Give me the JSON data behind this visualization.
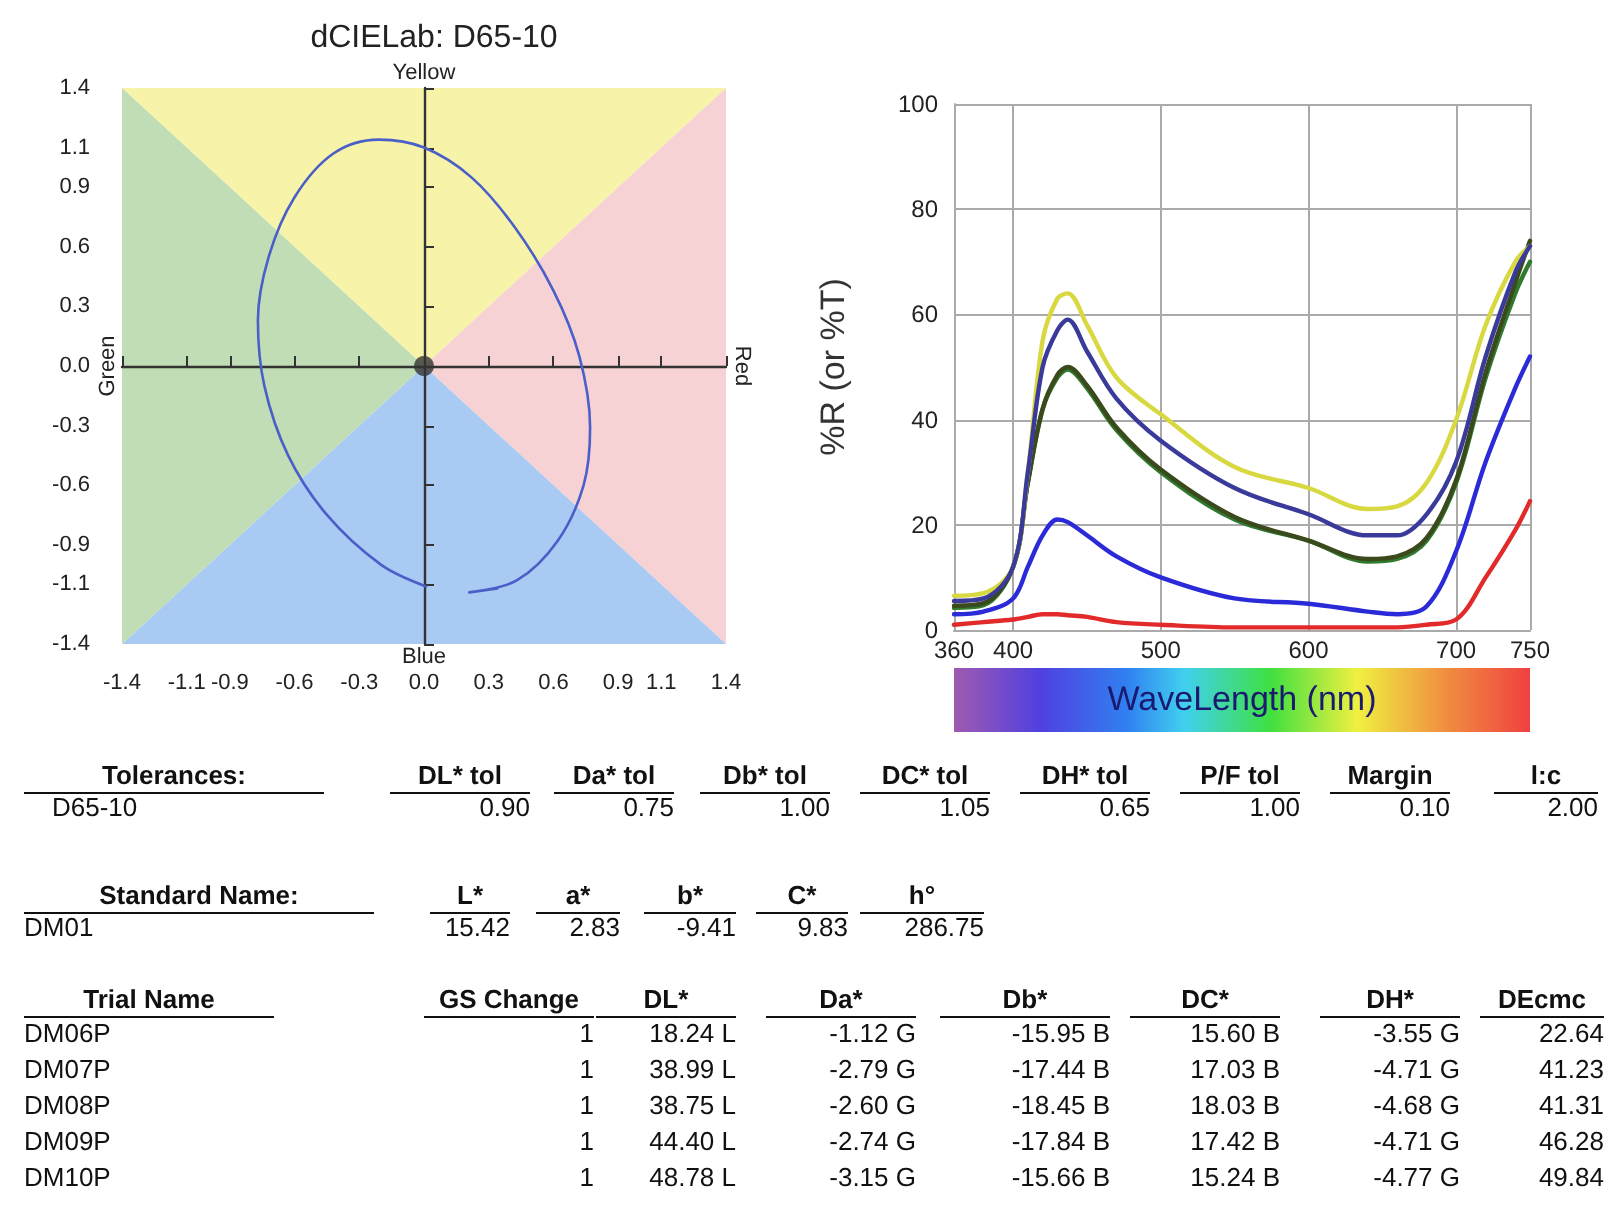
{
  "chart_data": [
    {
      "type": "line",
      "title": "dCIELab: D65-10",
      "x": [
        0.01,
        -0.2,
        -0.45,
        -0.63,
        -0.74,
        -0.77,
        -0.72,
        -0.6,
        -0.42,
        -0.21,
        0.0,
        0.22,
        0.42,
        0.6,
        0.72,
        0.77,
        0.74,
        0.62,
        0.43,
        0.21,
        0.34
      ],
      "series": [
        {
          "type": "area",
          "color": "#f7f3a8",
          "x": [
            -1.4,
            0,
            1.4
          ],
          "values": [
            null,
            null,
            null
          ],
          "lower": [
            1.4,
            0,
            1.4
          ],
          "upper": [
            1.4,
            1.4,
            1.4
          ]
        },
        {
          "type": "area",
          "color": "#f6d2d5",
          "x": [
            0,
            1.4
          ],
          "values": [
            null,
            null
          ],
          "lower": [
            0,
            -1.4
          ],
          "upper": [
            0,
            1.4
          ]
        },
        {
          "type": "area",
          "color": "#a9caf3",
          "x": [
            -1.4,
            0,
            1.4
          ],
          "values": [
            null,
            null,
            null
          ],
          "lower": [
            -1.4,
            -1.4,
            -1.4
          ],
          "upper": [
            -1.4,
            0,
            -1.4
          ]
        },
        {
          "type": "area",
          "color": "#c0ddb6",
          "x": [
            -1.4,
            0
          ],
          "values": [
            null,
            null
          ],
          "lower": [
            -1.4,
            0
          ],
          "upper": [
            1.4,
            0
          ]
        },
        {
          "color": "#4a5fc8",
          "values": [
            -1.11,
            -1.0,
            -0.75,
            -0.45,
            -0.1,
            0.23,
            0.55,
            0.85,
            1.07,
            1.14,
            1.1,
            0.95,
            0.7,
            0.38,
            0.05,
            -0.31,
            -0.6,
            -0.88,
            -1.08,
            -1.14,
            -1.12
          ]
        },
        {
          "type": "scatter",
          "color": "#333333",
          "x": [
            0
          ],
          "values": [
            0
          ]
        }
      ],
      "xlim": [
        -1.4,
        1.4
      ],
      "ylim": [
        -1.4,
        1.4
      ],
      "xticks": [
        {
          "value": -1.4,
          "label": "-1.4"
        },
        {
          "value": -1.1,
          "label": "-1.1"
        },
        {
          "value": -0.9,
          "label": "-0.9"
        },
        {
          "value": -0.6,
          "label": "-0.6"
        },
        {
          "value": -0.3,
          "label": "-0.3"
        },
        {
          "value": 0,
          "label": "0.0"
        },
        {
          "value": 0.3,
          "label": "0.3"
        },
        {
          "value": 0.6,
          "label": "0.6"
        },
        {
          "value": 0.9,
          "label": "0.9"
        },
        {
          "value": 1.1,
          "label": "1.1"
        },
        {
          "value": 1.4,
          "label": "1.4"
        }
      ],
      "yticks": [
        {
          "value": -1.4,
          "label": "-1.4"
        },
        {
          "value": -1.1,
          "label": "-1.1"
        },
        {
          "value": -0.9,
          "label": "-0.9"
        },
        {
          "value": -0.6,
          "label": "-0.6"
        },
        {
          "value": -0.3,
          "label": "-0.3"
        },
        {
          "value": 0,
          "label": "0.0"
        },
        {
          "value": 0.3,
          "label": "0.3"
        },
        {
          "value": 0.6,
          "label": "0.6"
        },
        {
          "value": 0.9,
          "label": "0.9"
        },
        {
          "value": 1.1,
          "label": "1.1"
        },
        {
          "value": 1.4,
          "label": "1.4"
        }
      ],
      "annotations": [
        "Yellow",
        "Blue",
        "Green",
        "Red"
      ]
    },
    {
      "type": "line",
      "xlabel": "WaveLength (nm)",
      "ylabel": "%R (or %T)",
      "x": [
        360,
        380,
        400,
        410,
        420,
        430,
        437,
        450,
        470,
        500,
        550,
        600,
        640,
        660,
        680,
        700,
        720,
        740,
        750
      ],
      "series": [
        {
          "color": "#2f7a2f",
          "values": [
            4.2,
            4.7,
            12,
            28,
            42,
            48,
            49.5,
            46,
            38,
            30,
            21,
            17,
            13,
            13.5,
            17,
            28,
            48,
            64,
            70
          ]
        },
        {
          "color": "#3b4a1c",
          "values": [
            4.6,
            5.1,
            12,
            28,
            42,
            48.5,
            50,
            46.5,
            38.5,
            30.5,
            21.5,
            17,
            13.5,
            14,
            17.5,
            28.5,
            49,
            66,
            74
          ]
        },
        {
          "color": "#d8d840",
          "values": [
            6.5,
            7,
            12,
            30,
            55,
            63,
            64,
            58,
            48,
            41,
            31,
            27,
            23,
            23.5,
            28,
            40,
            58,
            70,
            73
          ]
        },
        {
          "color": "#3a3a9a",
          "values": [
            5.5,
            6,
            12,
            30,
            50,
            57,
            59,
            53,
            44,
            36,
            27,
            22,
            18,
            18,
            22,
            32,
            52,
            68,
            73
          ]
        },
        {
          "color": "#2a2ad8",
          "values": [
            3,
            3.5,
            6,
            12,
            18,
            21,
            20.5,
            18,
            14,
            10,
            6,
            5,
            3.5,
            3,
            4.5,
            15,
            32,
            46,
            52
          ]
        },
        {
          "color": "#e22a2a",
          "values": [
            1,
            1.5,
            2,
            2.5,
            3,
            3,
            2.8,
            2.5,
            1.5,
            1,
            0.5,
            0.5,
            0.5,
            0.5,
            1,
            2,
            10,
            19,
            24.5
          ]
        }
      ],
      "xlim": [
        360,
        750
      ],
      "ylim": [
        0,
        100
      ],
      "xticks": [
        360,
        400,
        500,
        600,
        700,
        750
      ],
      "yticks": [
        0,
        20,
        40,
        60,
        80,
        100
      ],
      "grid": true
    },
    {
      "type": "other",
      "annotations": [
        "Tolerances:\tDL* tol\tDa* tol\tDb* tol\tDC* tol\tDH* tol\tP/F tol\tMargin\tl:c",
        "D65-10\t0.90\t0.75\t1.00\t1.05\t0.65\t1.00\t0.10\t2.00",
        "Standard Name:\tL*\ta*\tb*\tC*\th°",
        "DM01\t15.42\t2.83\t-9.41\t9.83\t286.75",
        "Trial Name\tGS Change\tDL*\tDa*\tDb*\tDC*\tDH*\tDEcmc",
        "DM06P\t1\t18.24 L\t-1.12 G\t-15.95 B\t15.60 B\t-3.55 G\t22.64",
        "DM07P\t1\t38.99 L\t-2.79 G\t-17.44 B\t17.03 B\t-4.71 G\t41.23",
        "DM08P\t1\t38.75 L\t-2.60 G\t-18.45 B\t18.03 B\t-4.68 G\t41.31",
        "DM09P\t1\t44.40 L\t-2.74 G\t-17.84 B\t17.42 B\t-4.71 G\t46.28",
        "DM10P\t1\t48.78 L\t-3.15 G\t-15.66 B\t15.24 B\t-4.77 G\t49.84"
      ]
    }
  ]
}
